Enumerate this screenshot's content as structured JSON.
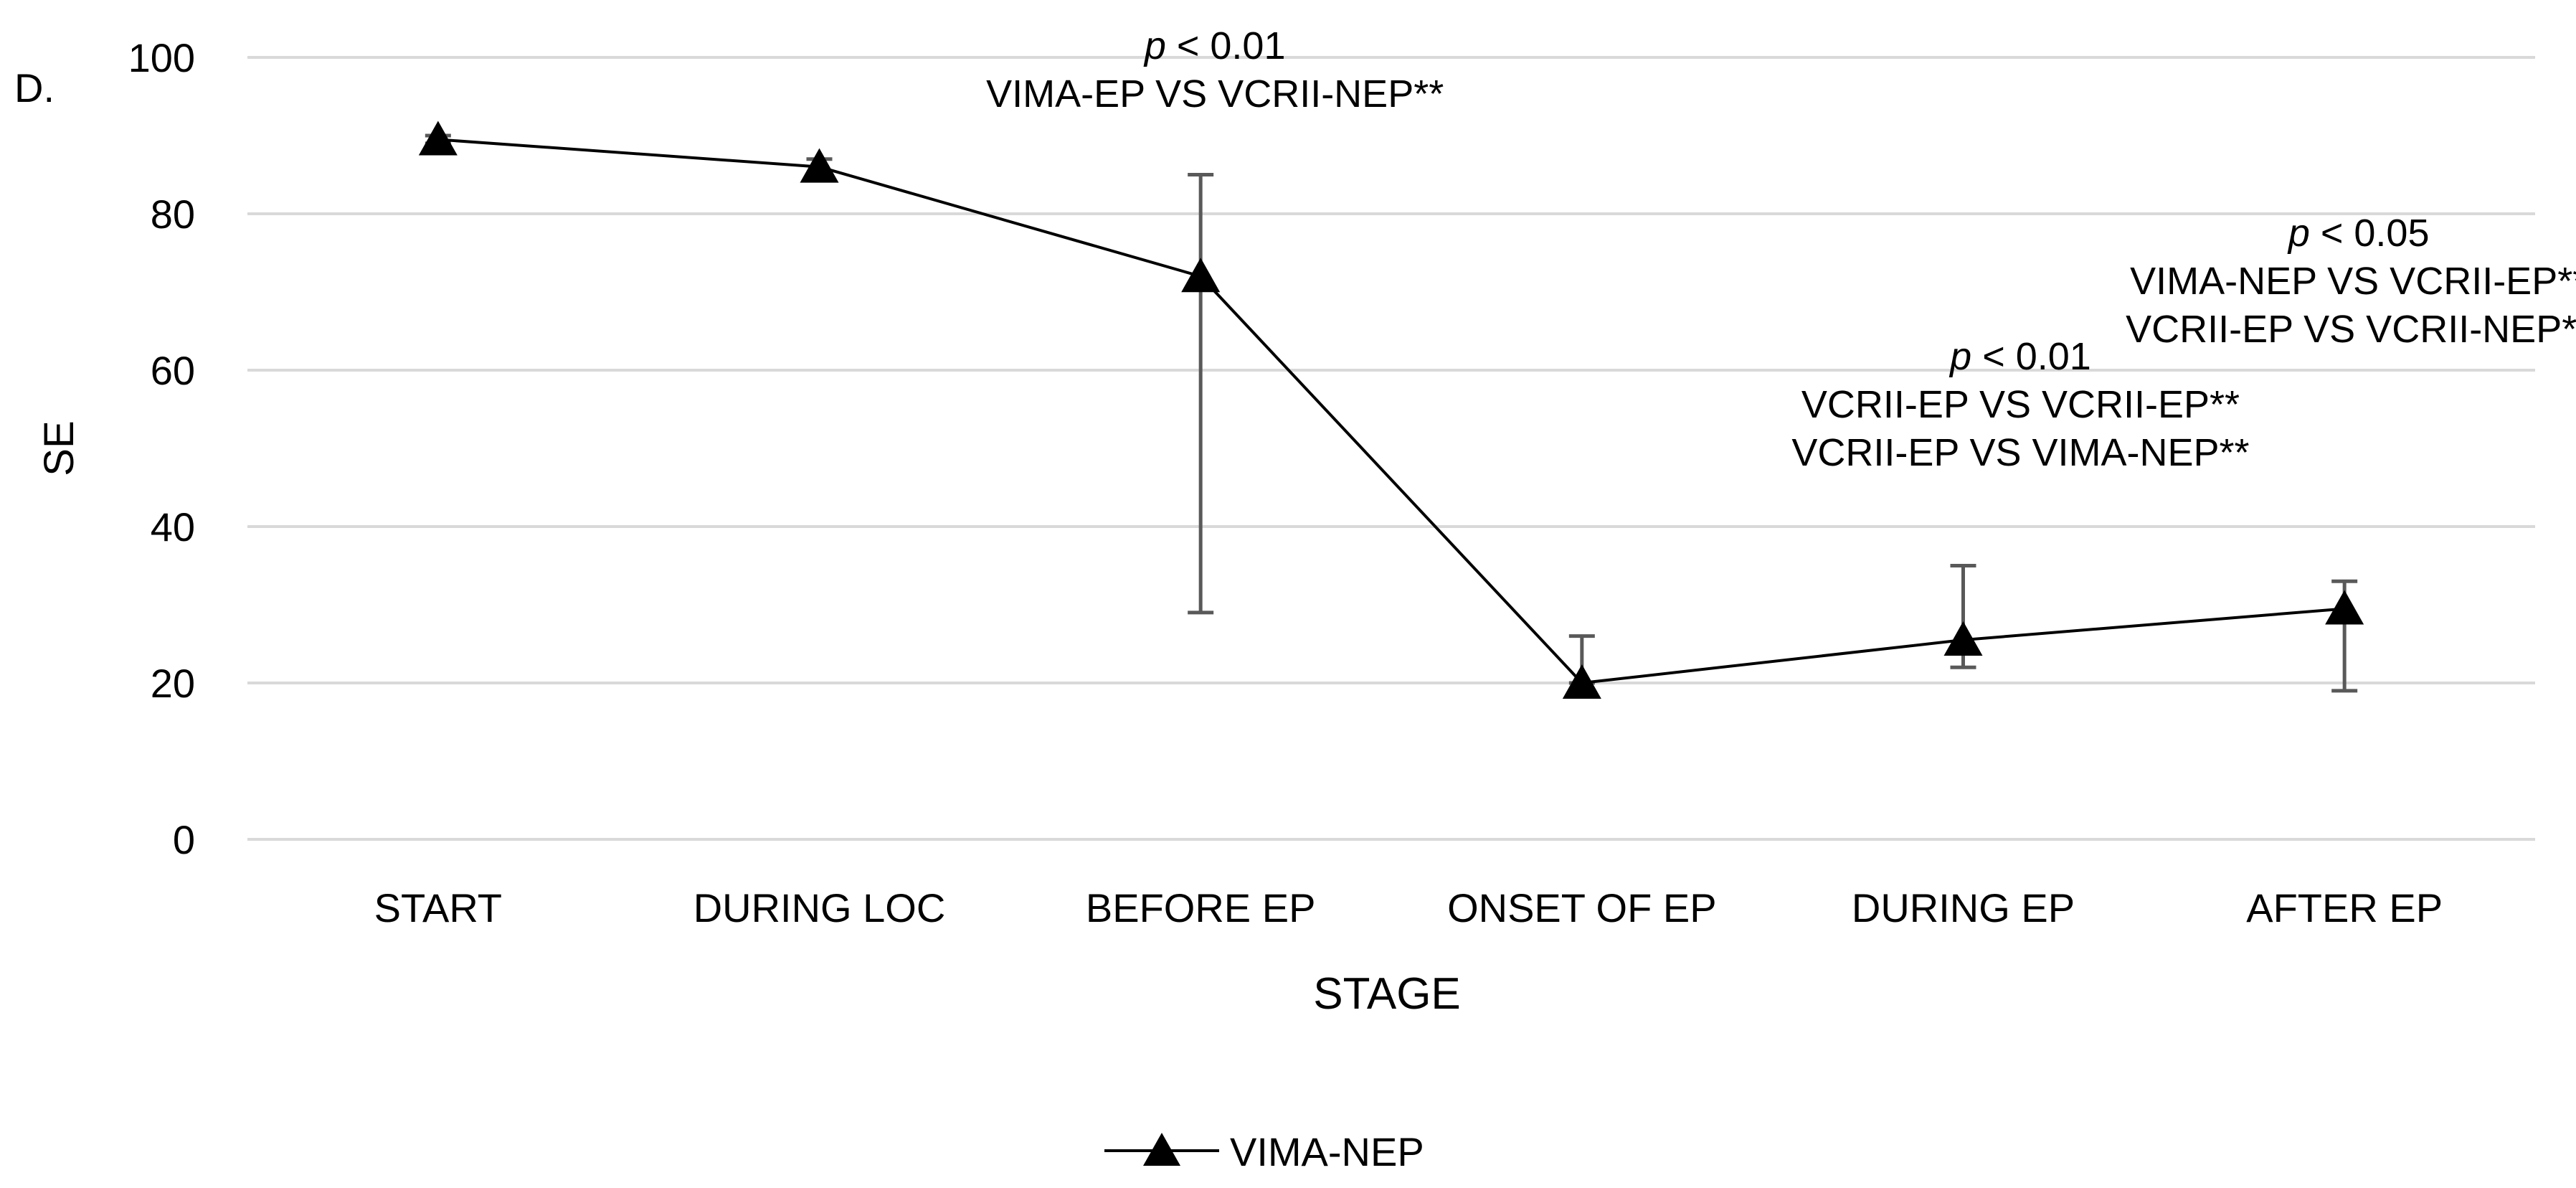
{
  "chart_data": {
    "type": "line",
    "panel_label": "D.",
    "title": "",
    "xlabel": "STAGE",
    "ylabel": "SE",
    "ylim": [
      0,
      100
    ],
    "yticks": [
      0,
      20,
      40,
      60,
      80,
      100
    ],
    "grid": true,
    "categories": [
      "START",
      "DURING LOC",
      "BEFORE EP",
      "ONSET OF EP",
      "DURING EP",
      "AFTER EP"
    ],
    "series": [
      {
        "name": "VIMA-NEP",
        "marker": "triangle",
        "color": "#000000",
        "values": [
          89.5,
          86,
          72,
          20,
          25.5,
          29.5
        ],
        "error_upper": [
          90,
          87,
          85,
          26,
          35,
          33
        ],
        "error_lower": [
          89,
          85,
          29,
          20,
          22,
          19
        ]
      }
    ],
    "legend": {
      "position": "bottom-center",
      "entries": [
        "VIMA-NEP"
      ]
    },
    "annotations": [
      {
        "category": "BEFORE EP",
        "lines": [
          {
            "p_symbol": "p",
            "text": " < 0.01"
          },
          {
            "text": "VIMA-EP VS VCRII-NEP**"
          }
        ]
      },
      {
        "category": "DURING EP",
        "lines": [
          {
            "p_symbol": "p",
            "text": " < 0.01"
          },
          {
            "text": "VCRII-EP VS VCRII-EP**"
          },
          {
            "text": "VCRII-EP VS VIMA-NEP**"
          }
        ]
      },
      {
        "category": "AFTER EP",
        "lines": [
          {
            "p_symbol": "p",
            "text": " < 0.05"
          },
          {
            "text": "VIMA-NEP VS VCRII-EP**"
          },
          {
            "text": "VCRII-EP VS VCRII-NEP**"
          }
        ]
      }
    ],
    "colors": {
      "grid": "#d9d9d9",
      "axis": "#d9d9d9",
      "error_bar": "#595959",
      "line": "#000000"
    }
  }
}
